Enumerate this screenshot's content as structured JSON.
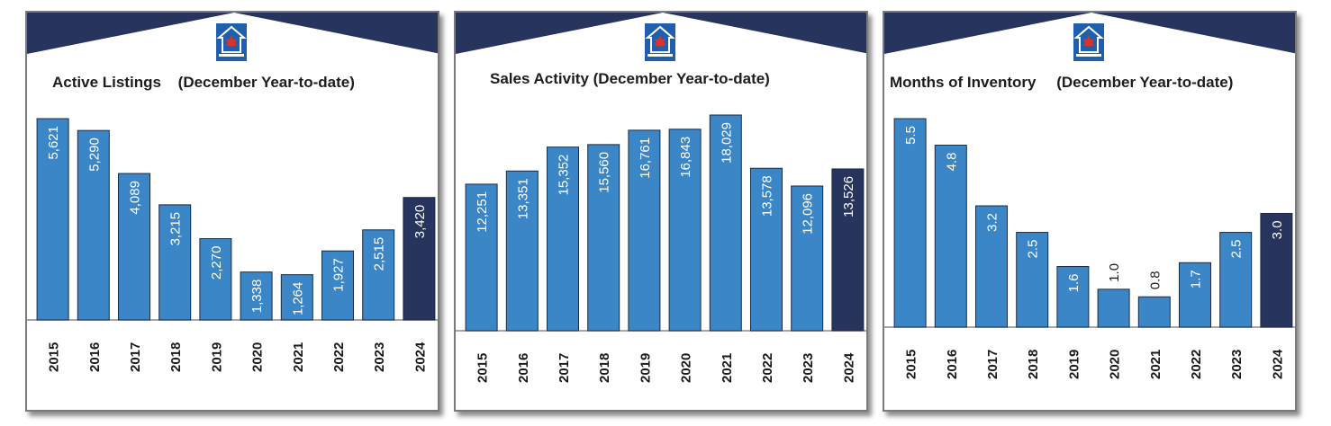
{
  "colors": {
    "bar": "#3b86c6",
    "bar_highlight": "#26345e",
    "header": "#26345e",
    "label_on_bar": "#ffffff",
    "label_above": "#1a1a1a"
  },
  "panels": [
    {
      "title_a": "Active Listings",
      "title_b": "(December Year-to-date)"
    },
    {
      "title_a": "Sales Activity (December Year-to-date)",
      "title_b": ""
    },
    {
      "title_a": "Months of Inventory",
      "title_b": "(December Year-to-date)"
    }
  ],
  "chart_data": [
    {
      "type": "bar",
      "title": "Active Listings (December Year-to-date)",
      "categories": [
        "2015",
        "2016",
        "2017",
        "2018",
        "2019",
        "2020",
        "2021",
        "2022",
        "2023",
        "2024"
      ],
      "values": [
        5621,
        5290,
        4089,
        3215,
        2270,
        1338,
        1264,
        1927,
        2515,
        3420
      ],
      "labels": [
        "5,621",
        "5,290",
        "4,089",
        "3,215",
        "2,270",
        "1,338",
        "1,264",
        "1,927",
        "2,515",
        "3,420"
      ],
      "highlight": "2024"
    },
    {
      "type": "bar",
      "title": "Sales Activity (December Year-to-date)",
      "categories": [
        "2015",
        "2016",
        "2017",
        "2018",
        "2019",
        "2020",
        "2021",
        "2022",
        "2023",
        "2024"
      ],
      "values": [
        12251,
        13351,
        15352,
        15560,
        16761,
        16843,
        18029,
        13578,
        12096,
        13526
      ],
      "labels": [
        "12,251",
        "13,351",
        "15,352",
        "15,560",
        "16,761",
        "16,843",
        "18,029",
        "13,578",
        "12,096",
        "13,526"
      ],
      "highlight": "2024"
    },
    {
      "type": "bar",
      "title": "Months of Inventory (December Year-to-date)",
      "categories": [
        "2015",
        "2016",
        "2017",
        "2018",
        "2019",
        "2020",
        "2021",
        "2022",
        "2023",
        "2024"
      ],
      "values": [
        5.5,
        4.8,
        3.2,
        2.5,
        1.6,
        1.0,
        0.8,
        1.7,
        2.5,
        3.0
      ],
      "labels": [
        "5.5",
        "4.8",
        "3.2",
        "2.5",
        "1.6",
        "1.0",
        "0.8",
        "1.7",
        "2.5",
        "3.0"
      ],
      "highlight": "2024"
    }
  ]
}
